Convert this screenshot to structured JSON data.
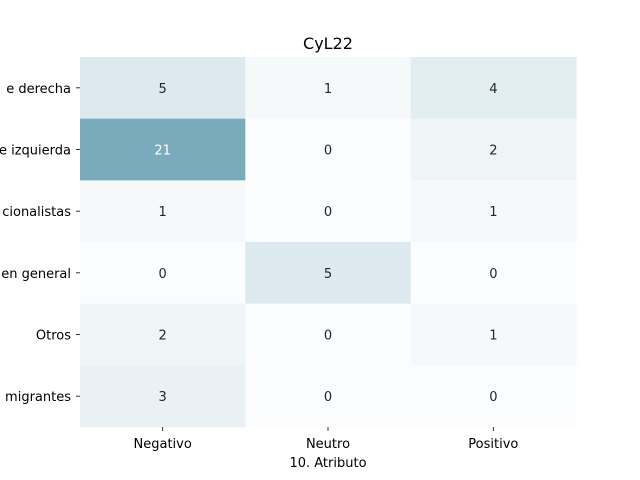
{
  "chart_data": {
    "type": "heatmap",
    "title": "CyL22",
    "xlabel": "10. Atributo",
    "ylabel": "",
    "x_categories": [
      "Negativo",
      "Neutro",
      "Positivo"
    ],
    "y_categories": [
      "e derecha",
      "e izquierda",
      "cionalistas",
      "en general",
      "Otros",
      "migrantes"
    ],
    "values": [
      [
        5,
        1,
        4
      ],
      [
        21,
        0,
        2
      ],
      [
        1,
        0,
        1
      ],
      [
        0,
        5,
        0
      ],
      [
        2,
        0,
        1
      ],
      [
        3,
        0,
        0
      ]
    ],
    "colorscale": {
      "min_value": 0,
      "max_value": 21,
      "low_color": "#ffffff",
      "high_color": "#7aabbd"
    },
    "grid": false,
    "legend": "none",
    "colorbar": false
  }
}
